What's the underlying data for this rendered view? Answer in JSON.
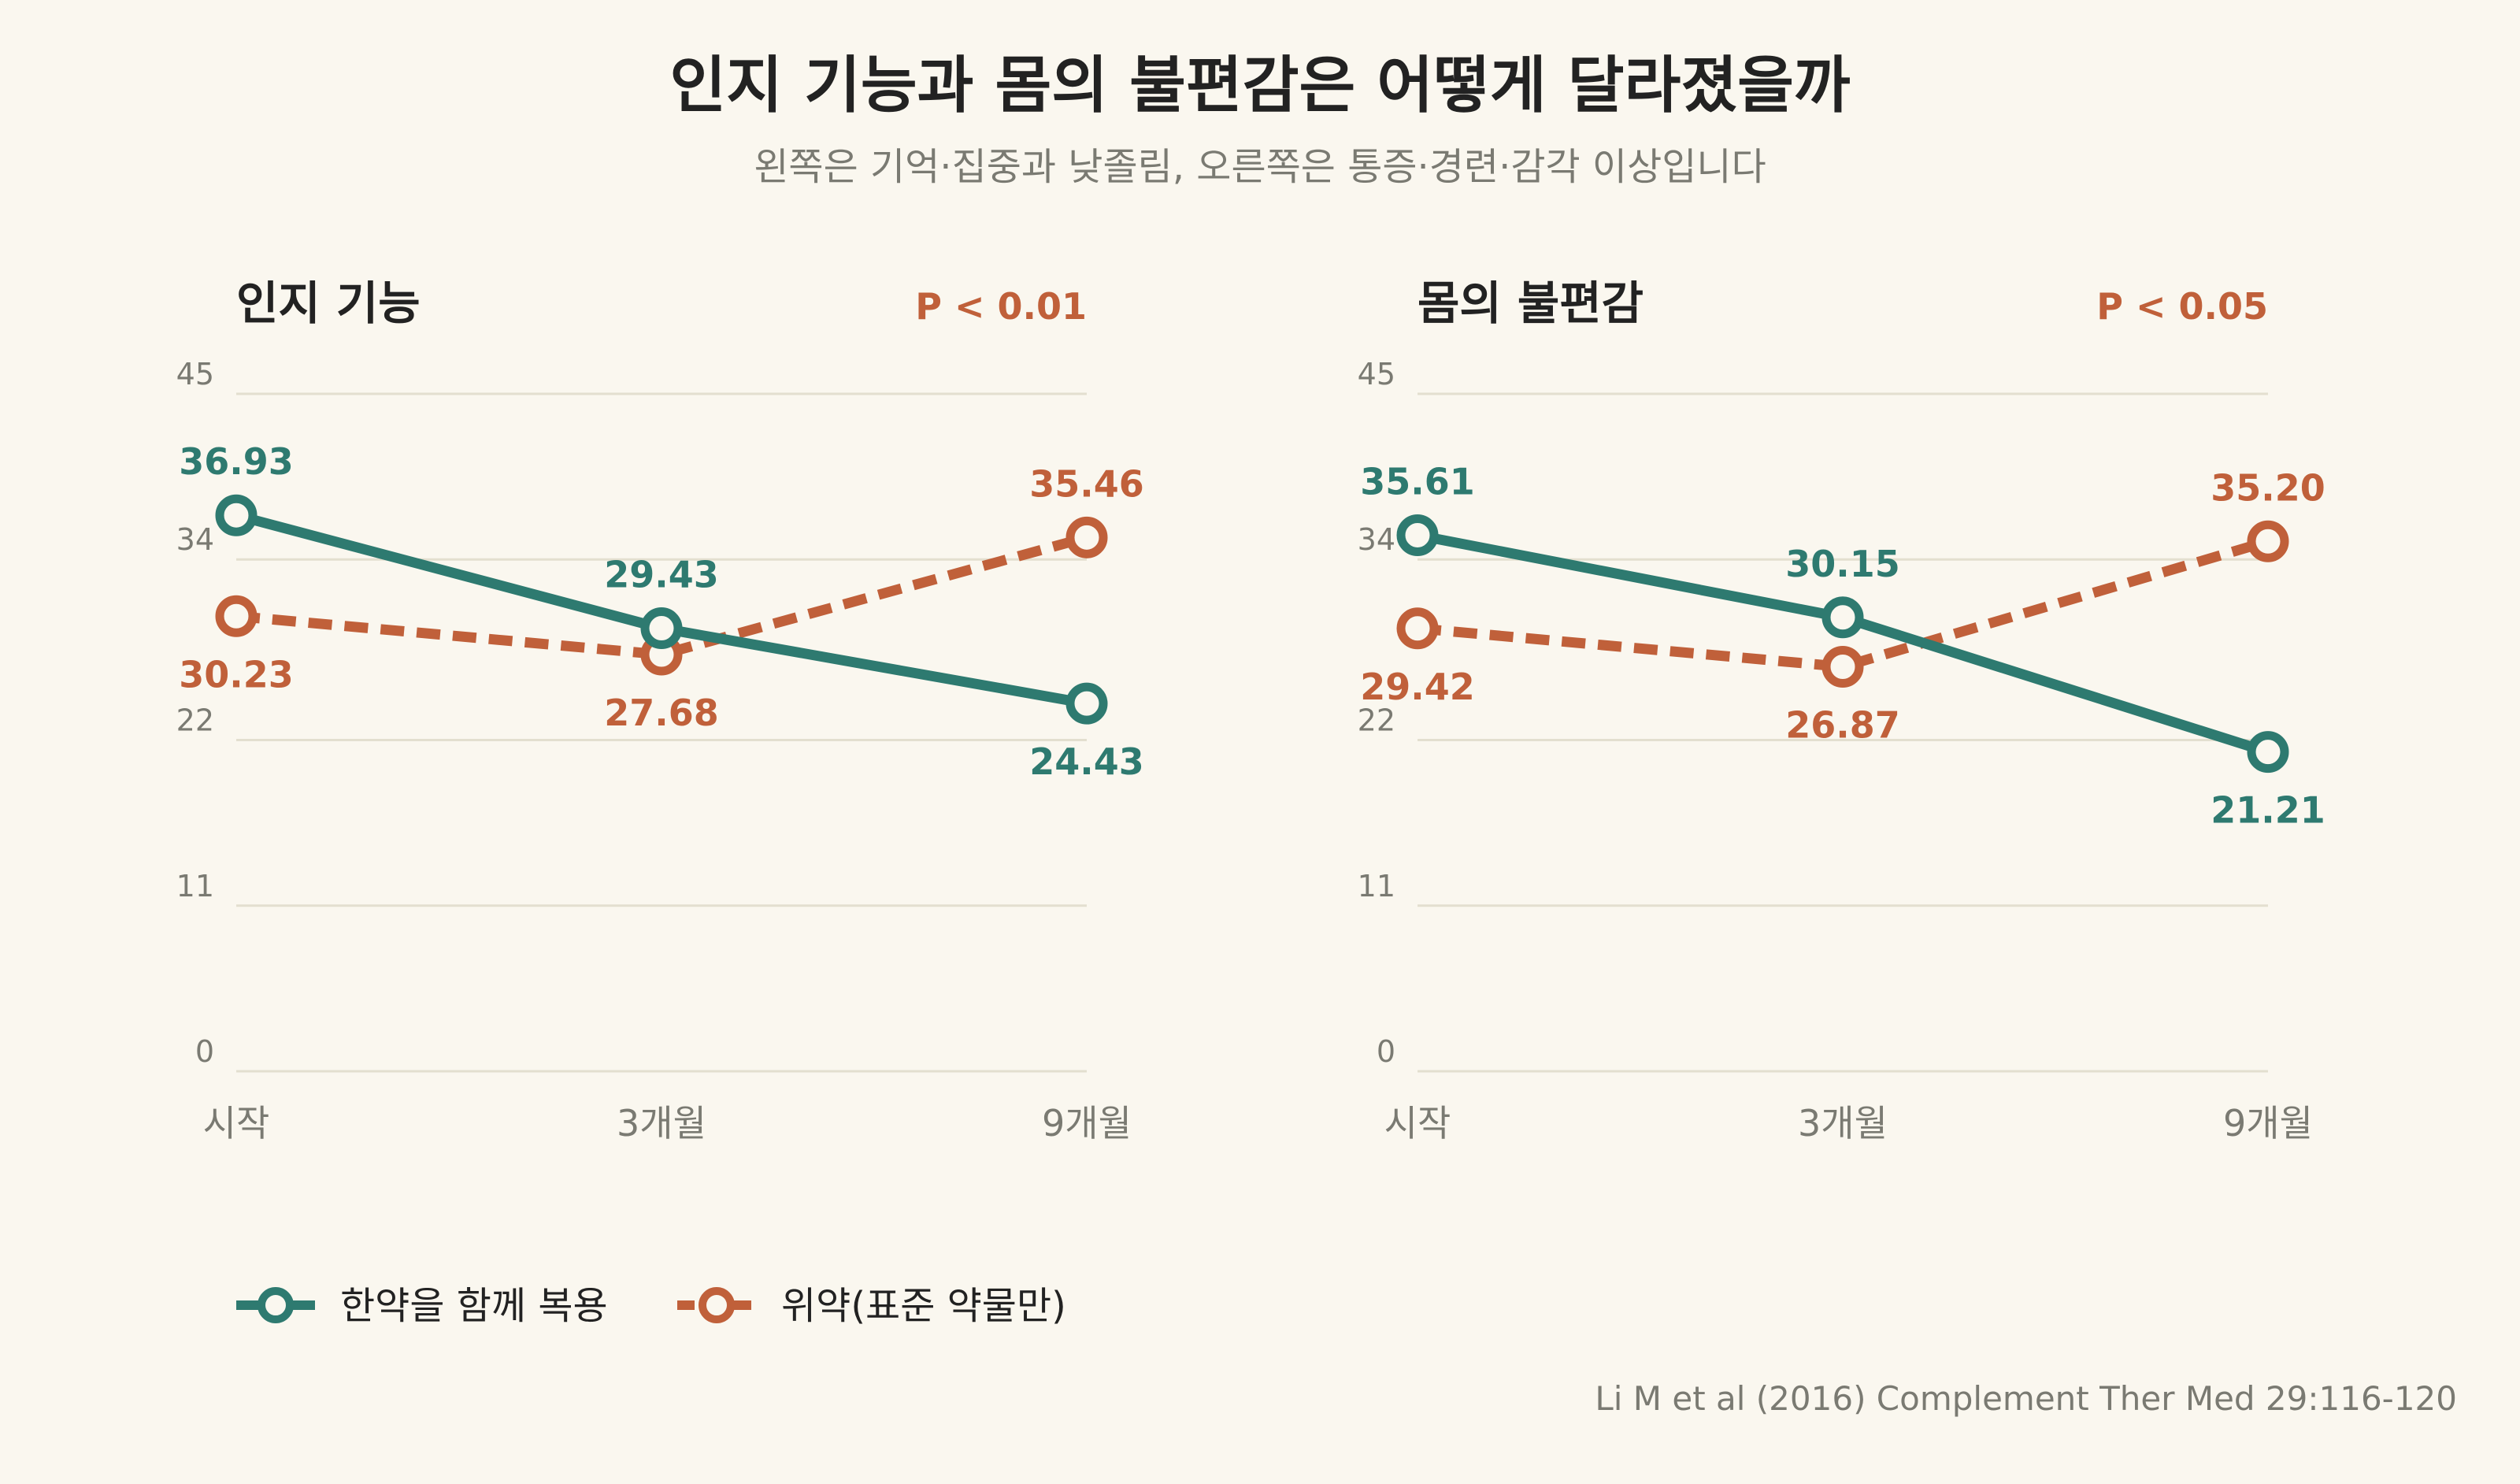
{
  "title": "인지 기능과 몸의 불편감은 어떻게 달라졌을까",
  "subtitle": "왼쪽은 기억·집중과 낮졸림, 오른쪽은 통증·경련·감각 이상입니다",
  "source": "Li M et al (2016) Complement Ther Med 29:116-120",
  "colors": {
    "background": "#faf7ef",
    "herbal": "#2e7a70",
    "placebo": "#c0603a",
    "grid": "#e3dfcf",
    "axis_text": "#7a7a72"
  },
  "legend": [
    {
      "label": "한약을 함께 복용",
      "style": "solid",
      "color": "#2e7a70"
    },
    {
      "label": "위약(표준 약물만)",
      "style": "dashed",
      "color": "#c0603a"
    }
  ],
  "chart_data": [
    {
      "type": "line",
      "title": "인지 기능",
      "annotation": "P < 0.01",
      "categories": [
        "시작",
        "3개월",
        "9개월"
      ],
      "yticks": [
        0,
        11,
        22,
        34,
        45
      ],
      "ylim": [
        0,
        45
      ],
      "grid": true,
      "series": [
        {
          "name": "한약을 함께 복용",
          "values": [
            36.93,
            29.43,
            24.43
          ],
          "labels": [
            "36.93",
            "29.43",
            "24.43"
          ]
        },
        {
          "name": "위약(표준 약물만)",
          "values": [
            30.23,
            27.68,
            35.46
          ],
          "labels": [
            "30.23",
            "27.68",
            "35.46"
          ]
        }
      ]
    },
    {
      "type": "line",
      "title": "몸의 불편감",
      "annotation": "P < 0.05",
      "categories": [
        "시작",
        "3개월",
        "9개월"
      ],
      "yticks": [
        0,
        11,
        22,
        34,
        45
      ],
      "ylim": [
        0,
        45
      ],
      "grid": true,
      "series": [
        {
          "name": "한약을 함께 복용",
          "values": [
            35.61,
            30.15,
            21.21
          ],
          "labels": [
            "35.61",
            "30.15",
            "21.21"
          ]
        },
        {
          "name": "위약(표준 약물만)",
          "values": [
            29.42,
            26.87,
            35.2
          ],
          "labels": [
            "29.42",
            "26.87",
            "35.20"
          ]
        }
      ]
    }
  ]
}
